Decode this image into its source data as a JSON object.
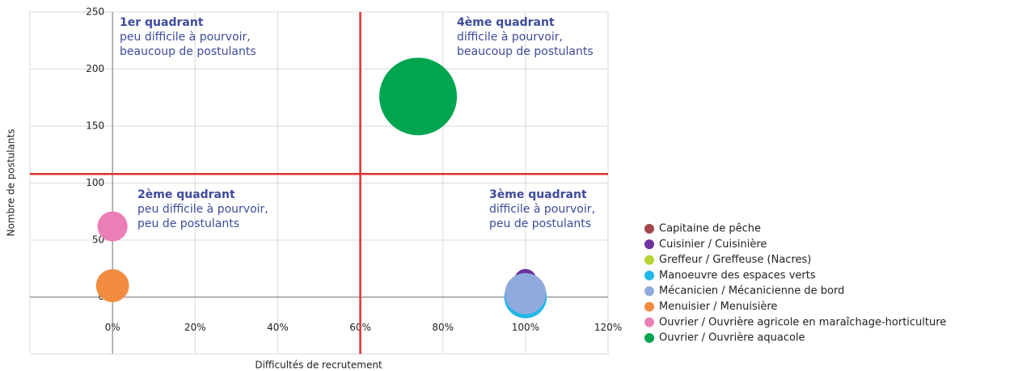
{
  "chart_data": {
    "type": "bubble",
    "xlabel": "Difficultés de recrutement",
    "ylabel": "Nombre de postulants",
    "xlim": [
      -20,
      120
    ],
    "ylim": [
      -50,
      250
    ],
    "xticks": [
      {
        "value": 0,
        "label": "0%"
      },
      {
        "value": 20,
        "label": "20%"
      },
      {
        "value": 40,
        "label": "40%"
      },
      {
        "value": 60,
        "label": "60%"
      },
      {
        "value": 80,
        "label": "80%"
      },
      {
        "value": 100,
        "label": "100%"
      },
      {
        "value": 120,
        "label": "120%"
      }
    ],
    "yticks": [
      0,
      50,
      100,
      150,
      200,
      250
    ],
    "grid": true,
    "reference_lines": {
      "x": 60,
      "y": 108,
      "color": "#e03232"
    },
    "annotations": [
      {
        "title": "1er quadrant",
        "lines": [
          "peu difficile à pourvoir,",
          "beaucoup de postulants"
        ]
      },
      {
        "title": "4ème quadrant",
        "lines": [
          "difficile à pourvoir,",
          "beaucoup de postulants"
        ]
      },
      {
        "title": "2ème quadrant",
        "lines": [
          "peu difficile à pourvoir,",
          "peu de postulants"
        ]
      },
      {
        "title": "3ème quadrant",
        "lines": [
          "difficile à pourvoir,",
          "peu de postulants"
        ]
      }
    ],
    "legend": "right",
    "series": [
      {
        "name": "Capitaine de pêche",
        "color": "#a3484a",
        "x": [
          100
        ],
        "values": [
          3
        ],
        "sizes": [
          28
        ]
      },
      {
        "name": "Cuisinier / Cuisinière",
        "color": "#7030a0",
        "x": [
          100
        ],
        "values": [
          15
        ],
        "sizes": [
          8
        ]
      },
      {
        "name": "Greffeur / Greffeuse (Nacres)",
        "color": "#b5d334",
        "x": [
          0
        ],
        "values": [
          5
        ],
        "sizes": [
          8
        ]
      },
      {
        "name": "Manoeuvre des espaces verts",
        "color": "#1fb8e8",
        "x": [
          100
        ],
        "values": [
          0
        ],
        "sizes": [
          30
        ]
      },
      {
        "name": "Mécanicien / Mécanicienne de bord",
        "color": "#8faadc",
        "x": [
          100
        ],
        "values": [
          3
        ],
        "sizes": [
          28
        ]
      },
      {
        "name": "Menuisier / Menuisière",
        "color": "#f28c40",
        "x": [
          0
        ],
        "values": [
          10
        ],
        "sizes": [
          18
        ]
      },
      {
        "name": "Ouvrier / Ouvrière agricole en maraîchage-horticulture",
        "color": "#ea7fb8",
        "x": [
          0
        ],
        "values": [
          62
        ],
        "sizes": [
          15
        ]
      },
      {
        "name": "Ouvrier / Ouvrière aquacole",
        "color": "#00a550",
        "x": [
          74
        ],
        "values": [
          176
        ],
        "sizes": [
          100
        ]
      }
    ]
  }
}
